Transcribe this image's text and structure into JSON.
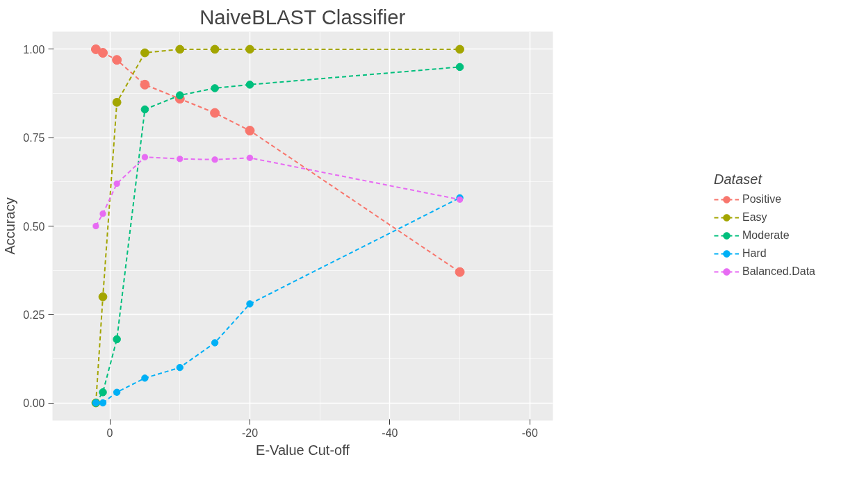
{
  "chart_data": {
    "type": "line",
    "title": "NaiveBLAST Classifier",
    "xlabel": "E-Value Cut-off",
    "ylabel": "Accuracy",
    "legend_title": "Dataset",
    "x": [
      2,
      1,
      -1,
      -5,
      -10,
      -15,
      -20,
      -50
    ],
    "series": [
      {
        "name": "Positive",
        "color": "#f8766d",
        "values": [
          1.0,
          0.99,
          0.97,
          0.9,
          0.86,
          0.82,
          0.77,
          0.37
        ]
      },
      {
        "name": "Easy",
        "color": "#a3a500",
        "values": [
          0.0,
          0.3,
          0.85,
          0.99,
          1.0,
          1.0,
          1.0,
          1.0
        ]
      },
      {
        "name": "Moderate",
        "color": "#00bf7d",
        "values": [
          0.0,
          0.03,
          0.18,
          0.83,
          0.87,
          0.89,
          0.9,
          0.95
        ]
      },
      {
        "name": "Hard",
        "color": "#00b0f6",
        "values": [
          0.0,
          0.0,
          0.03,
          0.07,
          0.1,
          0.17,
          0.28,
          0.58
        ]
      },
      {
        "name": "Balanced.Data",
        "color": "#e76bf3",
        "values": [
          0.5,
          0.535,
          0.62,
          0.695,
          0.69,
          0.688,
          0.693,
          0.575
        ]
      }
    ],
    "xlim": [
      8.2,
      -63.3
    ],
    "ylim": [
      -0.05,
      1.05
    ],
    "xticks": [
      0,
      -20,
      -40,
      -60
    ],
    "yticks": [
      {
        "value": 0,
        "label": "0.00"
      },
      {
        "value": 0.25,
        "label": "0.25"
      },
      {
        "value": 0.5,
        "label": "0.50"
      },
      {
        "value": 0.75,
        "label": "0.75"
      },
      {
        "value": 1,
        "label": "1.00"
      }
    ],
    "grid": true,
    "legend": "right",
    "marker": "circle",
    "line_style": "dashed"
  }
}
